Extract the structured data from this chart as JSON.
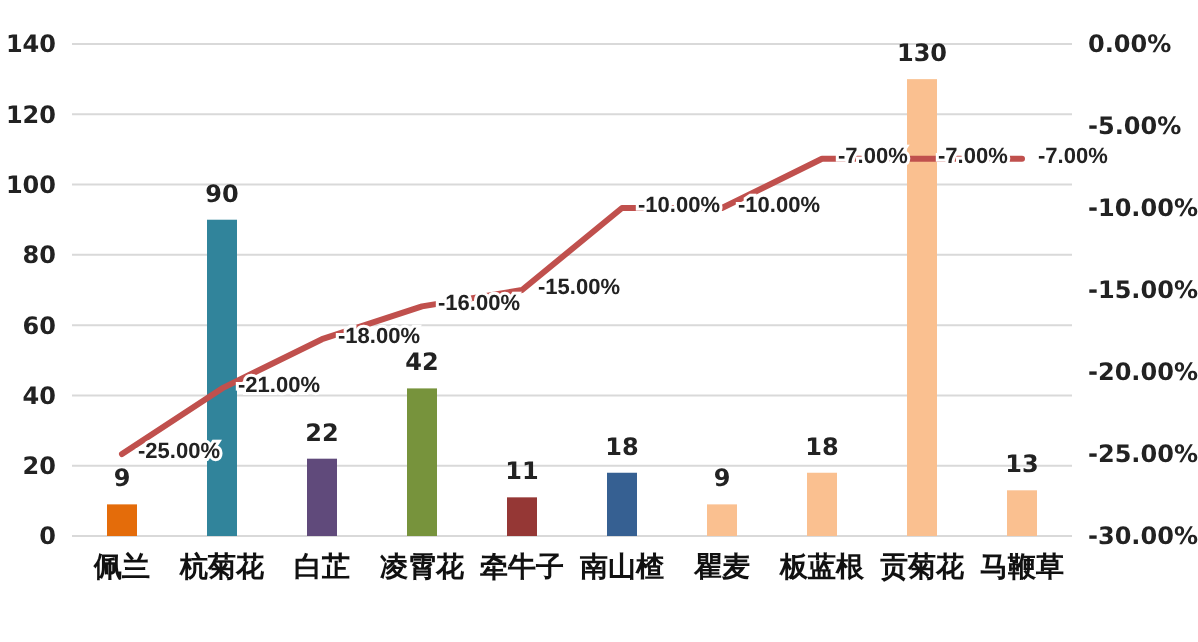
{
  "chart_data": {
    "type": "bar",
    "categories": [
      "佩兰",
      "杭菊花",
      "白芷",
      "凌霄花",
      "牵牛子",
      "南山楂",
      "瞿麦",
      "板蓝根",
      "贡菊花",
      "马鞭草"
    ],
    "series": [
      {
        "colors": [
          "#e46c0a",
          "#31849b",
          "#604a7b",
          "#77933c",
          "#953735",
          "#366092",
          "#fac090",
          "#fac090",
          "#fac090",
          "#fac090"
        ],
        "values": [
          9,
          90,
          22,
          42,
          11,
          18,
          9,
          18,
          130,
          13
        ],
        "value_labels": [
          "9",
          "90",
          "22",
          "42",
          "11",
          "18",
          "9",
          "18",
          "130",
          "13"
        ]
      },
      {
        "type": "line",
        "axis": "y2",
        "color": "#c0504d",
        "values": [
          -25,
          -21,
          -18,
          -16,
          -15,
          -10,
          -10,
          -7,
          -7,
          -7
        ],
        "value_labels": [
          "-25.00%",
          "-21.00%",
          "-18.00%",
          "-16.00%",
          "-15.00%",
          "-10.00%",
          "-10.00%",
          "-7.00%",
          "-7.00%",
          "-7.00%"
        ]
      }
    ],
    "ylim": [
      0,
      140
    ],
    "yticks": [
      0,
      20,
      40,
      60,
      80,
      100,
      120,
      140
    ],
    "y2lim": [
      -30,
      0
    ],
    "y2ticks": [
      {
        "value": 0,
        "label": "0.00%"
      },
      {
        "value": -5,
        "label": "-5.00%"
      },
      {
        "value": -10,
        "label": "-10.00%"
      },
      {
        "value": -15,
        "label": "-15.00%"
      },
      {
        "value": -20,
        "label": "-20.00%"
      },
      {
        "value": -25,
        "label": "-25.00%"
      },
      {
        "value": -30,
        "label": "-30.00%"
      }
    ],
    "grid": "y"
  }
}
